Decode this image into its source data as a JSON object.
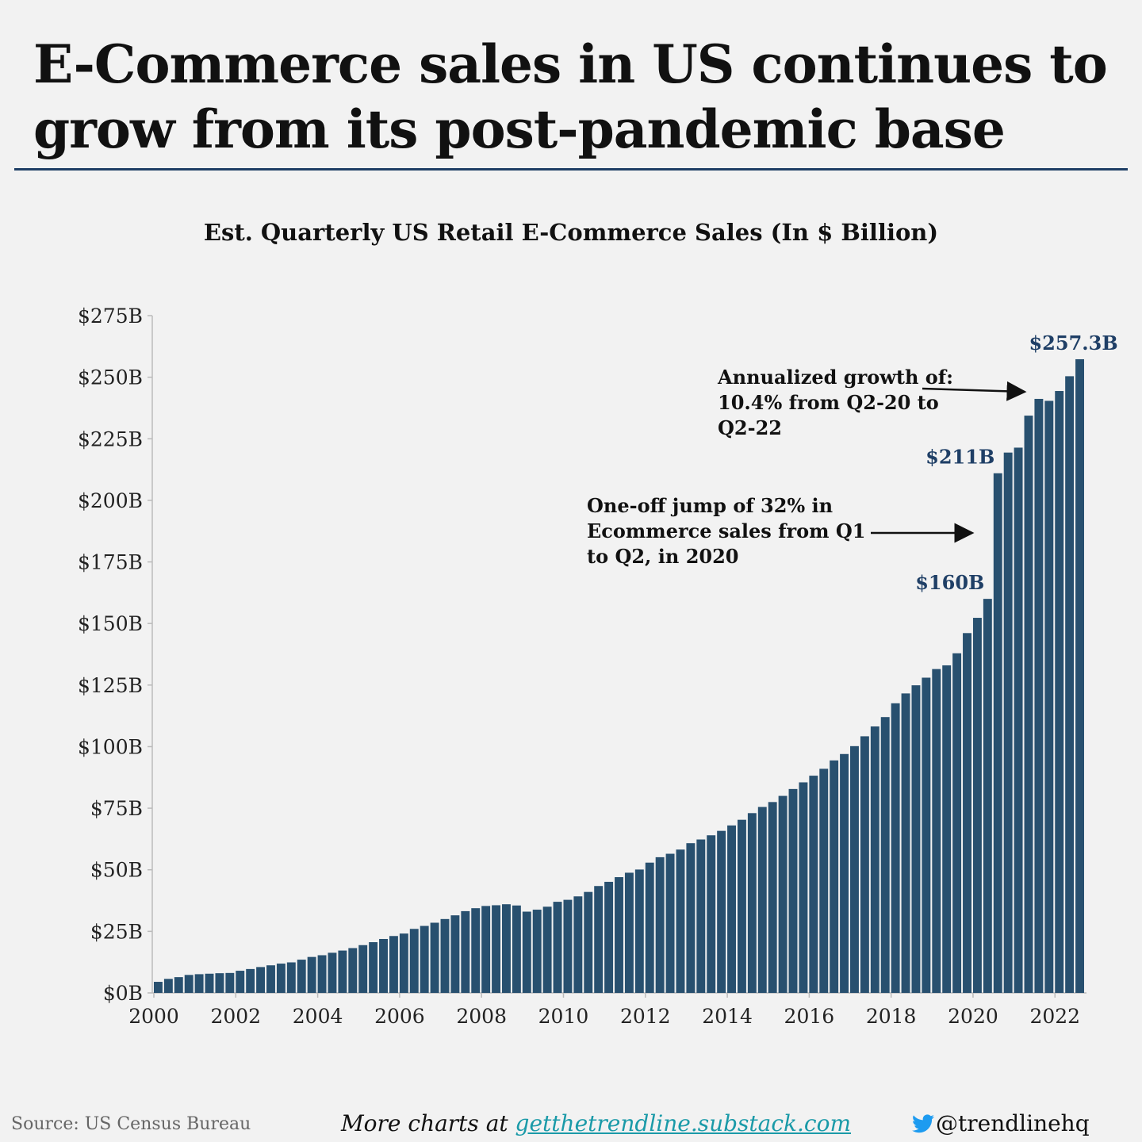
{
  "headline": "E-Commerce sales in US continues to grow from its post-pandemic base",
  "chart_data": {
    "type": "bar",
    "title": "Est. Quarterly US Retail E-Commerce Sales (In $ Billion)",
    "xlabel": "",
    "ylabel": "",
    "ylim": [
      0,
      275
    ],
    "y_ticks": [
      "$0B",
      "$25B",
      "$50B",
      "$75B",
      "$100B",
      "$125B",
      "$150B",
      "$175B",
      "$200B",
      "$225B",
      "$250B",
      "$275B"
    ],
    "y_tick_values": [
      0,
      25,
      50,
      75,
      100,
      125,
      150,
      175,
      200,
      225,
      250,
      275
    ],
    "x_ticks": [
      "2000",
      "2002",
      "2004",
      "2006",
      "2008",
      "2010",
      "2012",
      "2014",
      "2016",
      "2018",
      "2020",
      "2022"
    ],
    "start_year": 2000,
    "start_quarter": 1,
    "series": [
      {
        "values": [
          4.5,
          5.7,
          6.4,
          7.3,
          7.6,
          7.8,
          8.0,
          8.1,
          9.0,
          9.7,
          10.5,
          11.2,
          11.9,
          12.4,
          13.5,
          14.6,
          15.3,
          16.3,
          17.2,
          18.2,
          19.4,
          20.6,
          21.9,
          23.1,
          24.1,
          26.0,
          27.2,
          28.5,
          30.0,
          31.5,
          33.2,
          34.4,
          35.3,
          35.6,
          36.0,
          35.5,
          33.0,
          33.8,
          35.0,
          37.0,
          37.8,
          39.2,
          41.0,
          43.4,
          45.1,
          47.0,
          48.8,
          50.1,
          52.9,
          55.1,
          56.5,
          58.2,
          60.8,
          62.3,
          64.0,
          65.8,
          68.0,
          70.3,
          73.0,
          75.5,
          77.5,
          80.0,
          82.8,
          85.5,
          88.2,
          91.0,
          94.4,
          97.0,
          100.2,
          104.2,
          108.2,
          112.0,
          117.6,
          121.6,
          124.9,
          128.0,
          131.5,
          133.0,
          137.9,
          146.1,
          152.3,
          160.0,
          211.0,
          219.4,
          221.4,
          234.4,
          241.2,
          240.4,
          244.4,
          250.4,
          257.3
        ]
      }
    ],
    "value_labels": [
      {
        "index": 81,
        "text": "$160B"
      },
      {
        "index": 82,
        "text": "$211B"
      },
      {
        "index": 90,
        "text": "$257.3B"
      }
    ],
    "label_color": "#1f3f66",
    "bar_color": "#28506f",
    "grid": false
  },
  "annotations": {
    "growth": "Annualized growth of: 10.4% from Q2-20 to Q2-22",
    "jump": "One-off jump of 32% in Ecommerce sales from Q1 to Q2, in 2020"
  },
  "footer": {
    "source": "Source: US Census Bureau",
    "more_prefix": "More charts at ",
    "more_link": "getthetrendline.substack.com",
    "handle": "@trendlinehq"
  },
  "colors": {
    "accent_rule": "#1f3f66",
    "link": "#1a9aa8",
    "twitter": "#1d9bf0"
  }
}
